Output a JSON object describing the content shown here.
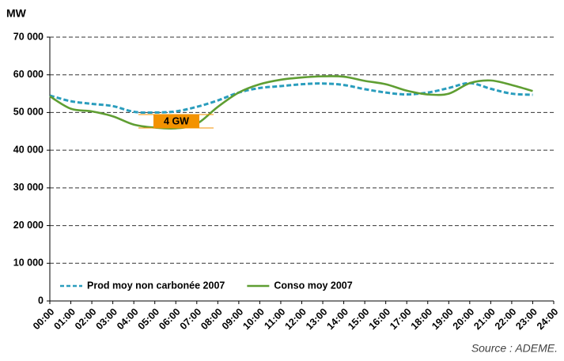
{
  "chart_data": {
    "type": "line",
    "y_label": "MW",
    "source": "Source : ADEME.",
    "annotation": "4 GW",
    "categories": [
      "00:00",
      "01:00",
      "02:00",
      "03:00",
      "04:00",
      "05:00",
      "06:00",
      "07:00",
      "08:00",
      "09:00",
      "10:00",
      "11:00",
      "12:00",
      "13:00",
      "14:00",
      "15:00",
      "16:00",
      "17:00",
      "18:00",
      "19:00",
      "20:00",
      "21:00",
      "22:00",
      "23:00",
      "24:00"
    ],
    "series": [
      {
        "name": "Prod moy non carbonée 2007",
        "color": "#2a9dbd",
        "dashed": true,
        "values": [
          54500,
          53000,
          52300,
          51700,
          50200,
          50000,
          50300,
          51500,
          53200,
          55300,
          56500,
          57000,
          57500,
          57700,
          57300,
          56200,
          55300,
          54800,
          55300,
          56500,
          57800,
          56300,
          55000,
          54700,
          null
        ]
      },
      {
        "name": "Conso moy 2007",
        "color": "#5f9e32",
        "dashed": false,
        "values": [
          54300,
          51000,
          50300,
          49000,
          46800,
          46000,
          45800,
          47000,
          51500,
          55300,
          57500,
          58700,
          59300,
          59600,
          59500,
          58400,
          57500,
          55800,
          54800,
          55000,
          57800,
          58500,
          57300,
          55700,
          null
        ]
      }
    ],
    "ylim": [
      0,
      70000
    ],
    "yticks": [
      0,
      {
        "value": 10000,
        "label": "10 000"
      },
      {
        "value": 20000,
        "label": "20 000"
      },
      {
        "value": 30000,
        "label": "30 000"
      },
      {
        "value": 40000,
        "label": "40 000"
      },
      {
        "value": 50000,
        "label": "50 000"
      },
      {
        "value": 60000,
        "label": "60 000"
      },
      {
        "value": 70000,
        "label": "70 000"
      }
    ],
    "grid": true,
    "legend": "bottom-left"
  }
}
